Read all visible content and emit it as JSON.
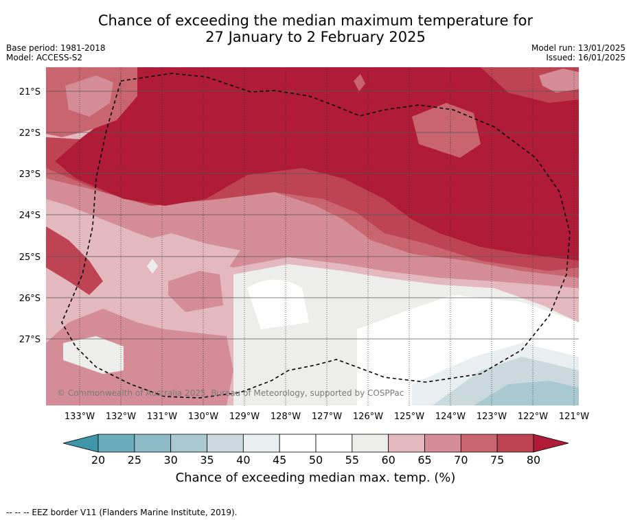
{
  "title_line1": "Chance of exceeding the median maximum temperature for",
  "title_line2": "27 January to 2 February 2025",
  "base_period": "Base period: 1981-2018",
  "model": "Model: ACCESS-S2",
  "model_run": "Model run: 13/01/2025",
  "issued": "Issued: 16/01/2025",
  "copyright": "© Commonwealth of Australia 2025, Bureau of Meteorology, supported by COSPPac",
  "lat_labels": [
    "21°S",
    "22°S",
    "23°S",
    "24°S",
    "25°S",
    "26°S",
    "27°S"
  ],
  "lon_labels": [
    "133°W",
    "132°W",
    "131°W",
    "130°W",
    "129°W",
    "128°W",
    "127°W",
    "126°W",
    "125°W",
    "124°W",
    "123°W",
    "122°W",
    "121°W"
  ],
  "colorbar": {
    "ticks": [
      "20",
      "25",
      "30",
      "35",
      "40",
      "45",
      "50",
      "55",
      "60",
      "65",
      "70",
      "75",
      "80"
    ],
    "colors": [
      "#6aacbc",
      "#8bbac6",
      "#a8c9cf",
      "#c9d9de",
      "#e9eff1",
      "#ffffff",
      "#ffffff",
      "#ededeb",
      "#e3b8bf",
      "#d48d96",
      "#c9656f",
      "#bf4453"
    ],
    "under_color": "#3f96a8",
    "over_color": "#b01c38",
    "label": "Chance of exceeding median max. temp. (%)"
  },
  "legend_footnote": "--  --  -- EEZ border V11 (Flanders Marine Institute, 2019)."
}
